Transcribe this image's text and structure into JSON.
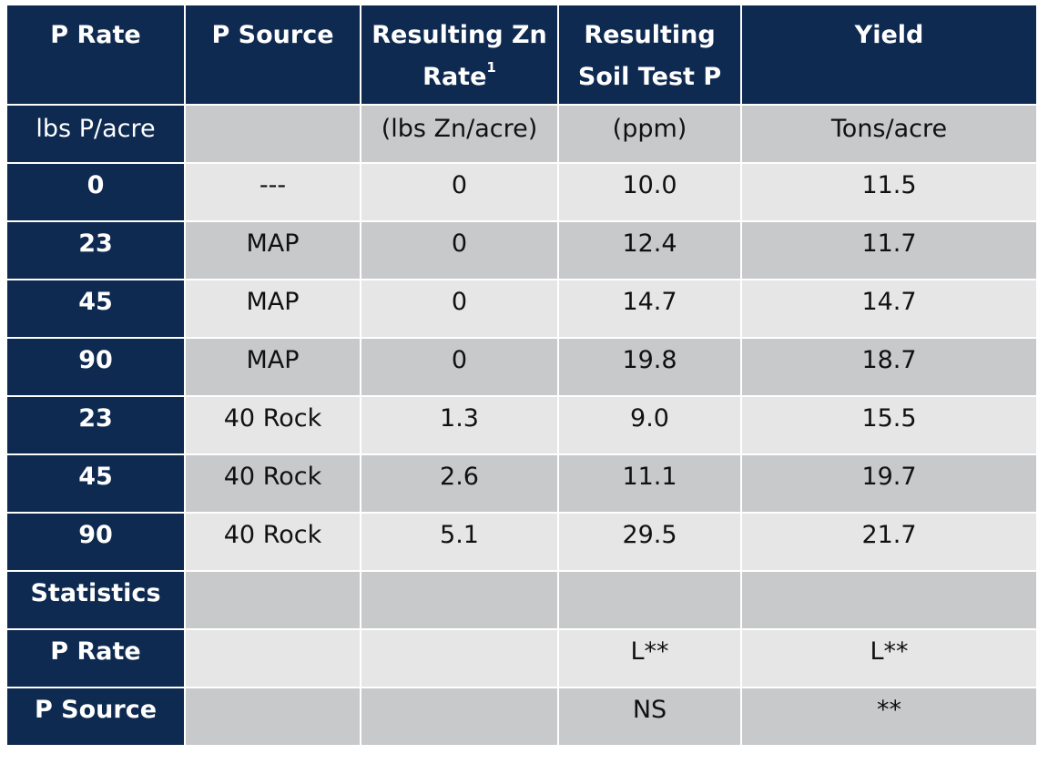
{
  "header": {
    "col1": "P Rate",
    "col2": "P Source",
    "col3": "Resulting Zn",
    "col3b": "Rate",
    "col3_footnote": "1",
    "col4": "Resulting",
    "col4b": "Soil Test P",
    "col5": "Yield"
  },
  "units": [
    "lbs P/acre",
    "",
    "(lbs Zn/acre)",
    "(ppm)",
    "Tons/acre"
  ],
  "rows": [
    {
      "rate": "0",
      "source": "---",
      "zn": "0",
      "stp": "10.0",
      "yield": "11.5"
    },
    {
      "rate": "23",
      "source": "MAP",
      "zn": "0",
      "stp": "12.4",
      "yield": "11.7"
    },
    {
      "rate": "45",
      "source": "MAP",
      "zn": "0",
      "stp": "14.7",
      "yield": "14.7"
    },
    {
      "rate": "90",
      "source": "MAP",
      "zn": "0",
      "stp": "19.8",
      "yield": "18.7"
    },
    {
      "rate": "23",
      "source": "40 Rock",
      "zn": "1.3",
      "stp": "9.0",
      "yield": "15.5"
    },
    {
      "rate": "45",
      "source": "40 Rock",
      "zn": "2.6",
      "stp": "11.1",
      "yield": "19.7"
    },
    {
      "rate": "90",
      "source": "40 Rock",
      "zn": "5.1",
      "stp": "29.5",
      "yield": "21.7"
    }
  ],
  "statistics": {
    "label": "Statistics",
    "p_rate": {
      "label": "P Rate",
      "source": "",
      "zn": "",
      "stp": "L**",
      "yield": "L**"
    },
    "p_source": {
      "label": "P Source",
      "source": "",
      "zn": "",
      "stp": "NS",
      "yield": "**"
    }
  },
  "colors": {
    "header_bg": "#0e2a51",
    "light_row": "#e6e6e6",
    "dark_row": "#c8c9cb"
  }
}
